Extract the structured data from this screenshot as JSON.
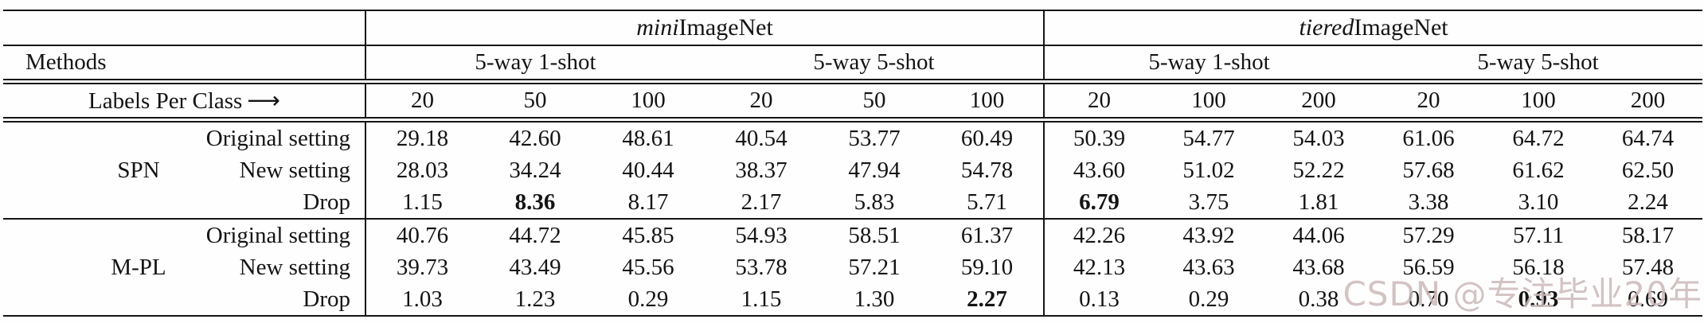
{
  "header": {
    "datasets": [
      {
        "italic_part": "mini",
        "normal_part": "ImageNet"
      },
      {
        "italic_part": "tiered",
        "normal_part": "ImageNet"
      }
    ],
    "methods_label": "Methods",
    "shot_headers": [
      "5-way 1-shot",
      "5-way 5-shot",
      "5-way 1-shot",
      "5-way 5-shot"
    ],
    "labels_per_class_label": "Labels Per Class",
    "arrow": "⟶",
    "label_counts": [
      "20",
      "50",
      "100",
      "20",
      "50",
      "100",
      "20",
      "100",
      "200",
      "20",
      "100",
      "200"
    ]
  },
  "body": {
    "groups": [
      {
        "method": "SPN",
        "rows": [
          {
            "setting": "Original setting",
            "values": [
              "29.18",
              "42.60",
              "48.61",
              "40.54",
              "53.77",
              "60.49",
              "50.39",
              "54.77",
              "54.03",
              "61.06",
              "64.72",
              "64.74"
            ],
            "bold": []
          },
          {
            "setting": "New setting",
            "values": [
              "28.03",
              "34.24",
              "40.44",
              "38.37",
              "47.94",
              "54.78",
              "43.60",
              "51.02",
              "52.22",
              "57.68",
              "61.62",
              "62.50"
            ],
            "bold": []
          },
          {
            "setting": "Drop",
            "values": [
              "1.15",
              "8.36",
              "8.17",
              "2.17",
              "5.83",
              "5.71",
              "6.79",
              "3.75",
              "1.81",
              "3.38",
              "3.10",
              "2.24"
            ],
            "bold": [
              1,
              6
            ]
          }
        ]
      },
      {
        "method": "M-PL",
        "rows": [
          {
            "setting": "Original setting",
            "values": [
              "40.76",
              "44.72",
              "45.85",
              "54.93",
              "58.51",
              "61.37",
              "42.26",
              "43.92",
              "44.06",
              "57.29",
              "57.11",
              "58.17"
            ],
            "bold": []
          },
          {
            "setting": "New setting",
            "values": [
              "39.73",
              "43.49",
              "45.56",
              "53.78",
              "57.21",
              "59.10",
              "42.13",
              "43.63",
              "43.68",
              "56.59",
              "56.18",
              "57.48"
            ],
            "bold": []
          },
          {
            "setting": "Drop",
            "values": [
              "1.03",
              "1.23",
              "0.29",
              "1.15",
              "1.30",
              "2.27",
              "0.13",
              "0.29",
              "0.38",
              "0.70",
              "0.93",
              "0.69"
            ],
            "bold": [
              5,
              10
            ]
          }
        ]
      }
    ]
  },
  "watermark": {
    "text": "CSDN @专注毕业20年"
  }
}
